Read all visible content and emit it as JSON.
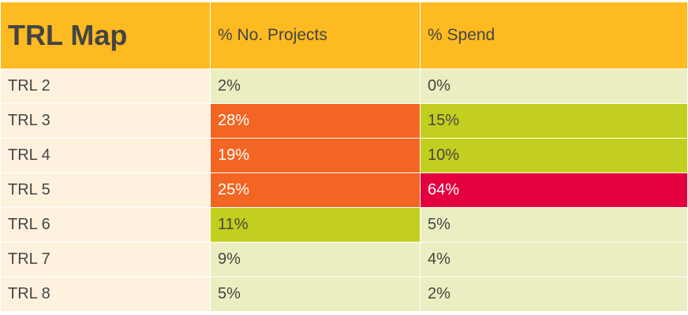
{
  "chart_data": {
    "type": "table",
    "title": "TRL Map",
    "columns": [
      "% No. Projects",
      "% Spend"
    ],
    "rows": [
      {
        "label": "TRL 2",
        "values": [
          "2%",
          "0%"
        ]
      },
      {
        "label": "TRL 3",
        "values": [
          "28%",
          "15%"
        ]
      },
      {
        "label": "TRL 4",
        "values": [
          "19%",
          "10%"
        ]
      },
      {
        "label": "TRL 5",
        "values": [
          "25%",
          "64%"
        ]
      },
      {
        "label": "TRL 6",
        "values": [
          "11%",
          "5%"
        ]
      },
      {
        "label": "TRL 7",
        "values": [
          "9%",
          "4%"
        ]
      },
      {
        "label": "TRL 8",
        "values": [
          "5%",
          "2%"
        ]
      }
    ],
    "colors": {
      "header": "#FDBA21",
      "label_bg": "#FEF2DF",
      "low": "#EBEEC0",
      "medium": "#C3CF1F",
      "high": "#F26522",
      "very_high": "#E4003F"
    }
  }
}
